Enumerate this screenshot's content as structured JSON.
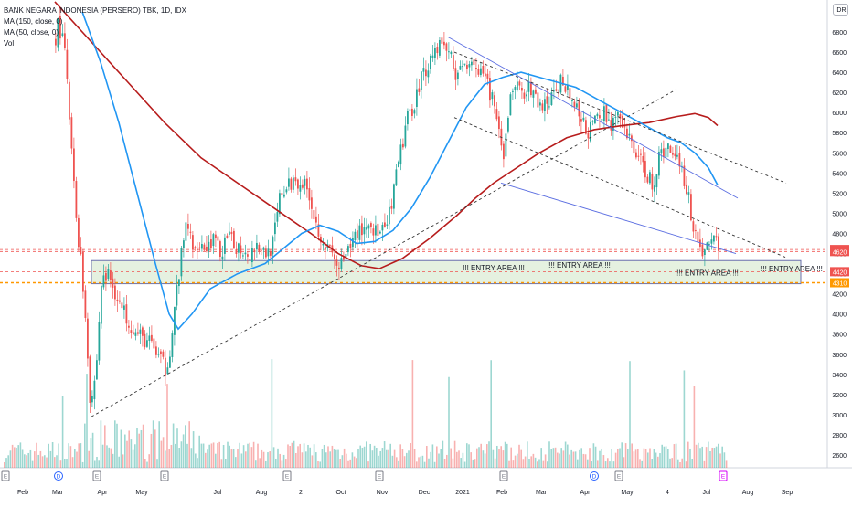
{
  "legend": {
    "symbol": "BANK NEGARA INDONESIA (PERSERO) TBK, 1D, IDX",
    "ma150": "MA (150, close, 0)",
    "ma50": "MA (50, close, 0)",
    "vol": "Vol"
  },
  "currency": "IDR",
  "colors": {
    "up": "#26a69a",
    "down": "#ef5350",
    "ma150": "#b71c1c",
    "ma50": "#2196f3",
    "channel": "#5b6ee1",
    "zone_fill": "#e5f1e0",
    "zone_border": "#6b6fae",
    "level_red": "#ef5350",
    "level_orange": "#ff9800"
  },
  "chart_data": {
    "type": "candlestick",
    "title": "BANK NEGARA INDONESIA (PERSERO) TBK, 1D, IDX",
    "y_ticks": [
      2600,
      2800,
      3000,
      3200,
      3400,
      3600,
      3800,
      4000,
      4200,
      4400,
      4600,
      4800,
      5000,
      5200,
      5400,
      5600,
      5800,
      6000,
      6200,
      6400,
      6600,
      6800
    ],
    "ylim": [
      2520,
      7000
    ],
    "x_ticks": [
      {
        "label": "Feb",
        "pos": 25
      },
      {
        "label": "Mar",
        "pos": 63
      },
      {
        "label": "Apr",
        "pos": 112
      },
      {
        "label": "May",
        "pos": 155
      },
      {
        "label": "Jul",
        "pos": 238
      },
      {
        "label": "Aug",
        "pos": 286
      },
      {
        "label": "2",
        "pos": 329
      },
      {
        "label": "Oct",
        "pos": 373
      },
      {
        "label": "Nov",
        "pos": 418
      },
      {
        "label": "Dec",
        "pos": 464
      },
      {
        "label": "2021",
        "pos": 506
      },
      {
        "label": "Feb",
        "pos": 549
      },
      {
        "label": "Mar",
        "pos": 592
      },
      {
        "label": "Apr",
        "pos": 640
      },
      {
        "label": "May",
        "pos": 686
      },
      {
        "label": "4",
        "pos": 730
      },
      {
        "label": "Jul",
        "pos": 773
      },
      {
        "label": "Aug",
        "pos": 818
      },
      {
        "label": "Sep",
        "pos": 861
      }
    ],
    "x_range": [
      0,
      905
    ],
    "price_path": [
      [
        60,
        6750
      ],
      [
        63,
        6900
      ],
      [
        70,
        6600
      ],
      [
        76,
        5800
      ],
      [
        82,
        5000
      ],
      [
        88,
        4500
      ],
      [
        94,
        3800
      ],
      [
        98,
        3100
      ],
      [
        104,
        3400
      ],
      [
        110,
        4300
      ],
      [
        117,
        4400
      ],
      [
        124,
        4250
      ],
      [
        132,
        4050
      ],
      [
        140,
        3950
      ],
      [
        148,
        3800
      ],
      [
        156,
        3750
      ],
      [
        165,
        3700
      ],
      [
        174,
        3550
      ],
      [
        180,
        3450
      ],
      [
        186,
        3700
      ],
      [
        192,
        4200
      ],
      [
        198,
        4600
      ],
      [
        204,
        4950
      ],
      [
        210,
        4600
      ],
      [
        216,
        4750
      ],
      [
        224,
        4650
      ],
      [
        232,
        4750
      ],
      [
        240,
        4600
      ],
      [
        248,
        4750
      ],
      [
        256,
        4680
      ],
      [
        264,
        4650
      ],
      [
        272,
        4600
      ],
      [
        280,
        4700
      ],
      [
        290,
        4600
      ],
      [
        298,
        4700
      ],
      [
        306,
        5200
      ],
      [
        314,
        5250
      ],
      [
        322,
        5350
      ],
      [
        330,
        5300
      ],
      [
        338,
        5200
      ],
      [
        344,
        4900
      ],
      [
        350,
        4800
      ],
      [
        356,
        4650
      ],
      [
        362,
        4600
      ],
      [
        368,
        4450
      ],
      [
        374,
        4500
      ],
      [
        380,
        4600
      ],
      [
        388,
        4800
      ],
      [
        396,
        4850
      ],
      [
        404,
        4900
      ],
      [
        412,
        4800
      ],
      [
        420,
        4800
      ],
      [
        428,
        5100
      ],
      [
        436,
        5550
      ],
      [
        444,
        5900
      ],
      [
        452,
        6100
      ],
      [
        460,
        6350
      ],
      [
        468,
        6500
      ],
      [
        476,
        6650
      ],
      [
        484,
        6700
      ],
      [
        492,
        6550
      ],
      [
        500,
        6350
      ],
      [
        508,
        6500
      ],
      [
        516,
        6550
      ],
      [
        522,
        6400
      ],
      [
        530,
        6300
      ],
      [
        538,
        6150
      ],
      [
        544,
        5800
      ],
      [
        550,
        5500
      ],
      [
        556,
        6100
      ],
      [
        562,
        6300
      ],
      [
        568,
        6200
      ],
      [
        576,
        6250
      ],
      [
        584,
        6150
      ],
      [
        592,
        6050
      ],
      [
        600,
        6100
      ],
      [
        608,
        6200
      ],
      [
        614,
        6350
      ],
      [
        620,
        6250
      ],
      [
        628,
        6050
      ],
      [
        636,
        5900
      ],
      [
        644,
        5800
      ],
      [
        652,
        5950
      ],
      [
        660,
        6000
      ],
      [
        666,
        5900
      ],
      [
        674,
        5950
      ],
      [
        682,
        5800
      ],
      [
        690,
        5700
      ],
      [
        698,
        5550
      ],
      [
        706,
        5400
      ],
      [
        714,
        5300
      ],
      [
        722,
        5600
      ],
      [
        730,
        5650
      ],
      [
        738,
        5600
      ],
      [
        744,
        5500
      ],
      [
        750,
        5250
      ],
      [
        756,
        4950
      ],
      [
        762,
        4750
      ],
      [
        768,
        4600
      ],
      [
        774,
        4700
      ],
      [
        780,
        4750
      ],
      [
        786,
        4700
      ]
    ],
    "ma150": [
      [
        60,
        7100
      ],
      [
        100,
        6700
      ],
      [
        140,
        6300
      ],
      [
        180,
        5900
      ],
      [
        220,
        5550
      ],
      [
        260,
        5300
      ],
      [
        300,
        5050
      ],
      [
        340,
        4800
      ],
      [
        370,
        4600
      ],
      [
        395,
        4480
      ],
      [
        415,
        4450
      ],
      [
        440,
        4550
      ],
      [
        470,
        4750
      ],
      [
        500,
        4980
      ],
      [
        520,
        5150
      ],
      [
        540,
        5300
      ],
      [
        560,
        5420
      ],
      [
        590,
        5600
      ],
      [
        620,
        5750
      ],
      [
        650,
        5830
      ],
      [
        680,
        5870
      ],
      [
        710,
        5900
      ],
      [
        740,
        5960
      ],
      [
        760,
        5990
      ],
      [
        775,
        5950
      ],
      [
        785,
        5870
      ]
    ],
    "ma50": [
      [
        90,
        7000
      ],
      [
        110,
        6500
      ],
      [
        130,
        5900
      ],
      [
        150,
        5200
      ],
      [
        170,
        4500
      ],
      [
        185,
        4000
      ],
      [
        195,
        3850
      ],
      [
        210,
        4000
      ],
      [
        230,
        4250
      ],
      [
        260,
        4400
      ],
      [
        290,
        4500
      ],
      [
        310,
        4650
      ],
      [
        330,
        4800
      ],
      [
        350,
        4880
      ],
      [
        370,
        4820
      ],
      [
        390,
        4700
      ],
      [
        410,
        4720
      ],
      [
        430,
        4830
      ],
      [
        450,
        5050
      ],
      [
        470,
        5350
      ],
      [
        490,
        5700
      ],
      [
        510,
        6050
      ],
      [
        530,
        6280
      ],
      [
        550,
        6350
      ],
      [
        570,
        6400
      ],
      [
        590,
        6350
      ],
      [
        610,
        6300
      ],
      [
        630,
        6250
      ],
      [
        650,
        6150
      ],
      [
        670,
        6050
      ],
      [
        690,
        5950
      ],
      [
        710,
        5850
      ],
      [
        730,
        5750
      ],
      [
        745,
        5700
      ],
      [
        760,
        5600
      ],
      [
        775,
        5450
      ],
      [
        785,
        5280
      ]
    ],
    "trendlines": [
      {
        "kind": "dashed",
        "from": [
          100,
          2980
        ],
        "to": [
          740,
          6230
        ]
      },
      {
        "kind": "solid",
        "from": [
          490,
          6750
        ],
        "to": [
          807,
          5150
        ]
      },
      {
        "kind": "solid",
        "from": [
          548,
          5300
        ],
        "to": [
          805,
          4600
        ]
      },
      {
        "kind": "dashed",
        "from": [
          497,
          6600
        ],
        "to": [
          860,
          5300
        ]
      },
      {
        "kind": "dashed",
        "from": [
          497,
          5950
        ],
        "to": [
          860,
          4560
        ]
      }
    ],
    "levels": [
      {
        "label": "4640",
        "value": 4640,
        "color": "#ef5350"
      },
      {
        "label": "4620",
        "value": 4620,
        "color": "#ef5350"
      },
      {
        "label": "4420",
        "value": 4420,
        "color": "#ef5350"
      },
      {
        "label": "4310",
        "value": 4310,
        "color": "#ff9800"
      }
    ],
    "entry_zone": {
      "x_range": [
        100,
        876
      ],
      "y_range": [
        4300,
        4530
      ]
    },
    "annotations": [
      {
        "text": "!!! ENTRY AREA !!!",
        "x": 540,
        "y": 4460
      },
      {
        "text": "!!! ENTRY AREA !!!",
        "x": 634,
        "y": 4485
      },
      {
        "text": "!!! ENTRY AREA !!!",
        "x": 774,
        "y": 4410
      },
      {
        "text": "!!! ENTRY AREA !!!",
        "x": 866,
        "y": 4450
      }
    ],
    "event_markers": [
      {
        "label": "E",
        "x": 6,
        "kind": "earnings"
      },
      {
        "label": "D",
        "x": 64,
        "kind": "dividend"
      },
      {
        "label": "E",
        "x": 106,
        "kind": "earnings"
      },
      {
        "label": "E",
        "x": 180,
        "kind": "earnings"
      },
      {
        "label": "E",
        "x": 314,
        "kind": "earnings"
      },
      {
        "label": "E",
        "x": 415,
        "kind": "earnings"
      },
      {
        "label": "E",
        "x": 551,
        "kind": "earnings"
      },
      {
        "label": "D",
        "x": 650,
        "kind": "dividend"
      },
      {
        "label": "E",
        "x": 677,
        "kind": "earnings"
      },
      {
        "label": "E",
        "x": 791,
        "kind": "earnings-upcoming"
      }
    ]
  }
}
